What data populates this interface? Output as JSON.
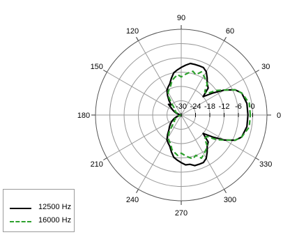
{
  "chart_data": {
    "type": "polar-line",
    "theta_unit": "deg",
    "angle_ticks": [
      90,
      60,
      30,
      0,
      330,
      300,
      270,
      240,
      210,
      180,
      150,
      120
    ],
    "angle_tick_labels": [
      "90",
      "60",
      "30",
      "0",
      "330",
      "300",
      "270",
      "240",
      "210",
      "180",
      "150",
      "120"
    ],
    "r_ticks": [
      -30,
      -24,
      -18,
      -12,
      -6,
      0
    ],
    "r_tick_labels": [
      "-30",
      "-24",
      "-18",
      "-12",
      "-6",
      "0"
    ],
    "rlim": [
      -30,
      6
    ],
    "grid": true,
    "legend_position": "bottom-left",
    "series": [
      {
        "name": "12500 Hz",
        "color": "#000000",
        "dash": "solid",
        "theta": [
          0,
          10,
          20,
          25,
          30,
          35,
          40,
          45,
          50,
          55,
          60,
          65,
          70,
          75,
          80,
          85,
          90,
          95,
          100,
          105,
          110,
          115,
          120,
          125,
          130,
          135,
          140,
          145,
          150,
          155,
          160,
          165,
          170,
          175,
          180,
          185,
          190,
          195,
          200,
          205,
          210,
          215,
          220,
          225,
          230,
          235,
          240,
          245,
          250,
          255,
          260,
          265,
          270,
          275,
          280,
          285,
          290,
          295,
          300,
          305,
          310,
          315,
          320,
          325,
          330,
          335,
          340,
          350,
          360
        ],
        "r": [
          -2,
          -2,
          -3,
          -5,
          -9,
          -14,
          -18,
          -14,
          -13,
          -11,
          -9,
          -8,
          -8,
          -8,
          -8,
          -9,
          -10,
          -11,
          -12,
          -14,
          -16,
          -17,
          -18,
          -20,
          -22,
          -24,
          -23,
          -25,
          -26,
          -27,
          -28,
          -29,
          -29,
          -30,
          -30,
          -30,
          -29,
          -29,
          -28,
          -27,
          -26,
          -25,
          -24,
          -23,
          -22,
          -20,
          -18,
          -17,
          -16,
          -14,
          -12,
          -11,
          -10,
          -9,
          -9,
          -8,
          -8,
          -8,
          -9,
          -11,
          -13,
          -14,
          -18,
          -14,
          -9,
          -5,
          -3,
          -2,
          -2
        ]
      },
      {
        "name": "16000 Hz",
        "color": "#2ca02c",
        "dash": "dashed",
        "theta": [
          0,
          10,
          20,
          25,
          30,
          35,
          40,
          45,
          50,
          55,
          60,
          65,
          70,
          75,
          80,
          85,
          90,
          95,
          100,
          105,
          110,
          115,
          120,
          125,
          130,
          135,
          140,
          145,
          150,
          155,
          160,
          165,
          170,
          175,
          180,
          185,
          190,
          195,
          200,
          205,
          210,
          215,
          220,
          225,
          230,
          235,
          240,
          245,
          250,
          255,
          260,
          265,
          270,
          275,
          280,
          285,
          290,
          295,
          300,
          305,
          310,
          315,
          320,
          325,
          330,
          335,
          340,
          350,
          360
        ],
        "r": [
          -1,
          -1,
          -3,
          -5,
          -9,
          -12,
          -16,
          -16,
          -13,
          -12,
          -11,
          -10,
          -12,
          -11,
          -12,
          -13,
          -14,
          -13,
          -14,
          -15,
          -17,
          -18,
          -19,
          -21,
          -24,
          -26,
          -26,
          -27,
          -27,
          -28,
          -29,
          -30,
          -30,
          -30,
          -30,
          -30,
          -30,
          -30,
          -29,
          -28,
          -27,
          -27,
          -26,
          -26,
          -24,
          -21,
          -19,
          -18,
          -17,
          -15,
          -14,
          -13,
          -14,
          -13,
          -12,
          -11,
          -12,
          -10,
          -11,
          -12,
          -13,
          -16,
          -16,
          -12,
          -9,
          -5,
          -3,
          -1,
          -1
        ]
      }
    ]
  }
}
